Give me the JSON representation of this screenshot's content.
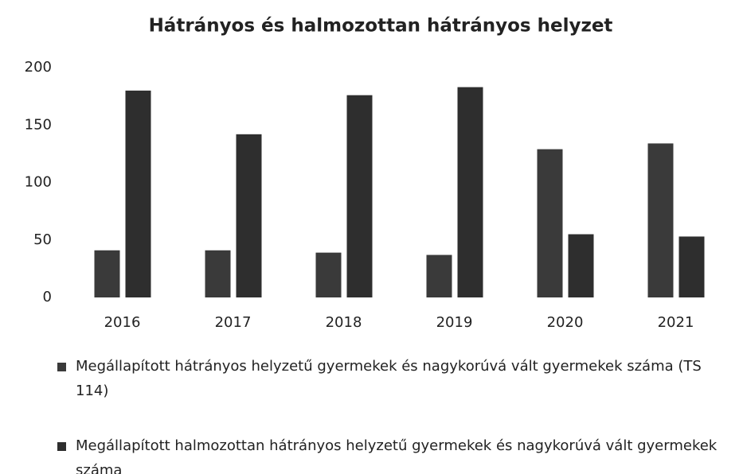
{
  "chart_data": {
    "type": "bar",
    "title": "Hátrányos és halmozottan hátrányos helyzet",
    "categories": [
      "2016",
      "2017",
      "2018",
      "2019",
      "2020",
      "2021"
    ],
    "series": [
      {
        "name": "Megállapított hátrányos helyzetű gyermekek és nagykorúvá vált gyermekek száma (TS 114)",
        "color": "#3a3a3a",
        "values": [
          41,
          41,
          39,
          37,
          129,
          134
        ]
      },
      {
        "name": "Megállapított halmozottan hátrányos helyzetű gyermekek és nagykorúvá vált gyermekek száma",
        "color": "#2e2e2e",
        "values": [
          180,
          142,
          176,
          183,
          55,
          53
        ]
      }
    ],
    "ylim": [
      0,
      200
    ],
    "yticks": [
      0,
      50,
      100,
      150,
      200
    ],
    "grid": false
  }
}
